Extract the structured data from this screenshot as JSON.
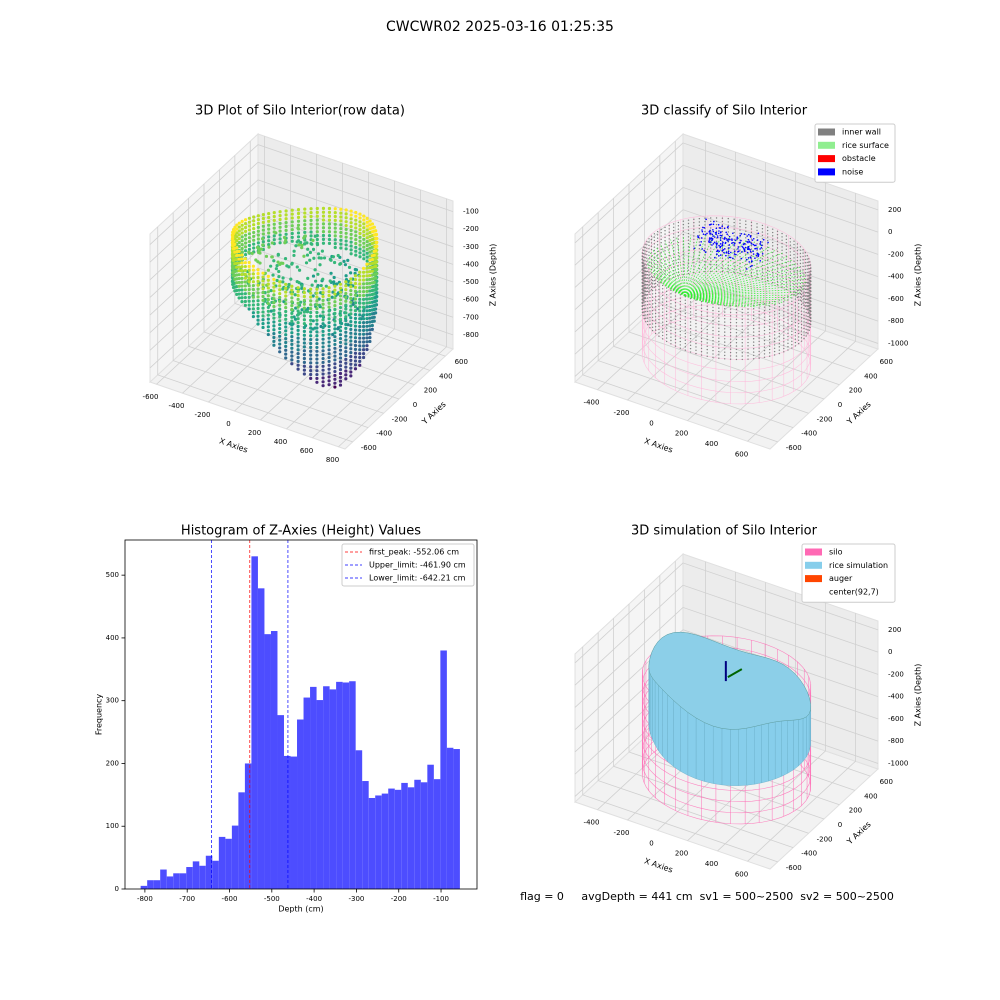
{
  "title": "CWCWR02 2025-03-16 01:25:35",
  "chart_data": [
    {
      "type": "scatter3d",
      "title": "3D Plot of Silo Interior(row data)",
      "xlabel": "X Axies",
      "ylabel": "Y Axies",
      "zlabel": "Z Axies (Depth)",
      "xlim": [
        -650,
        850
      ],
      "ylim": [
        -700,
        700
      ],
      "zlim": [
        -880,
        -40
      ],
      "xticks": [
        -600,
        -400,
        -200,
        0,
        200,
        400,
        600,
        800
      ],
      "yticks": [
        -600,
        -400,
        -200,
        0,
        200,
        400,
        600
      ],
      "zticks": [
        -100,
        -200,
        -300,
        -400,
        -500,
        -600,
        -700,
        -800
      ]
    },
    {
      "type": "classify3d",
      "title": "3D classify of Silo Interior",
      "xlabel": "X Axies",
      "ylabel": "Y Axies",
      "zlabel": "Z Axies (Depth)",
      "xlim": [
        -550,
        750
      ],
      "ylim": [
        -700,
        700
      ],
      "zlim": [
        -1050,
        280
      ],
      "xticks": [
        -400,
        -200,
        0,
        200,
        400,
        600
      ],
      "yticks": [
        -600,
        -400,
        -200,
        0,
        200,
        400,
        600
      ],
      "zticks": [
        200,
        0,
        -200,
        -400,
        -600,
        -800,
        -1000
      ],
      "series": [
        {
          "name": "inner wall",
          "color": "#808080"
        },
        {
          "name": "rice surface",
          "color": "#90ee90"
        },
        {
          "name": "obstacle",
          "color": "#ff0000"
        },
        {
          "name": "noise",
          "color": "#0000ff"
        }
      ]
    },
    {
      "type": "histogram",
      "title": "Histogram of Z-Axies (Height) Values",
      "xlabel": "Depth (cm)",
      "ylabel": "Frequency",
      "color": "#4d4dff",
      "xlim": [
        -847,
        -15
      ],
      "ylim": [
        0,
        556
      ],
      "xticks": [
        -800,
        -700,
        -600,
        -500,
        -400,
        -300,
        -200,
        -100
      ],
      "yticks": [
        0,
        100,
        200,
        300,
        400,
        500
      ],
      "bins": [
        -810,
        -794.6,
        -779.2,
        -763.8,
        -748.4,
        -733,
        -717.6,
        -702.2,
        -686.8,
        -671.4,
        -656,
        -640.6,
        -625.2,
        -609.8,
        -594.4,
        -579,
        -563.6,
        -548.2,
        -532.8,
        -517.4,
        -502,
        -486.6,
        -471.2,
        -455.8,
        -440.4,
        -425,
        -409.6,
        -394.2,
        -378.8,
        -363.4,
        -348,
        -332.6,
        -317.2,
        -301.8,
        -286.4,
        -271,
        -255.6,
        -240.2,
        -224.8,
        -209.4,
        -194,
        -178.6,
        -163.2,
        -147.8,
        -132.4,
        -117,
        -101.6,
        -86.2,
        -70.8,
        -55.4
      ],
      "values": [
        5,
        14,
        14,
        31,
        20,
        25,
        25,
        35,
        44,
        37,
        53,
        45,
        83,
        80,
        101,
        154,
        200,
        530,
        479,
        406,
        411,
        277,
        212,
        211,
        270,
        305,
        322,
        301,
        323,
        318,
        330,
        329,
        331,
        221,
        172,
        145,
        149,
        152,
        160,
        158,
        169,
        162,
        174,
        170,
        198,
        175,
        380,
        225,
        223
      ],
      "lines": [
        {
          "label": "first_peak: -552.06 cm",
          "value": -552.06,
          "color": "#ff0000"
        },
        {
          "label": "Upper_limit: -461.90 cm",
          "value": -461.9,
          "color": "#0000ff"
        },
        {
          "label": "Lower_limit: -642.21 cm",
          "value": -642.21,
          "color": "#0000ff"
        }
      ]
    },
    {
      "type": "surface3d",
      "title": "3D simulation of Silo Interior",
      "xlabel": "X Axies",
      "ylabel": "Y Axies",
      "zlabel": "Z Axies (Depth)",
      "xlim": [
        -550,
        750
      ],
      "ylim": [
        -700,
        700
      ],
      "zlim": [
        -1050,
        280
      ],
      "xticks": [
        -400,
        -200,
        0,
        200,
        400,
        600
      ],
      "yticks": [
        -600,
        -400,
        -200,
        0,
        200,
        400,
        600
      ],
      "zticks": [
        200,
        0,
        -200,
        -400,
        -600,
        -800,
        -1000
      ],
      "series": [
        {
          "name": "silo",
          "color": "#ff69b4"
        },
        {
          "name": "rice simulation",
          "color": "#87ceeb"
        },
        {
          "name": "auger",
          "color": "#ff4500"
        },
        {
          "name": "center(92,7)"
        }
      ]
    }
  ],
  "footer": "flag = 0     avgDepth = 441 cm  sv1 = 500~2500  sv2 = 500~2500"
}
